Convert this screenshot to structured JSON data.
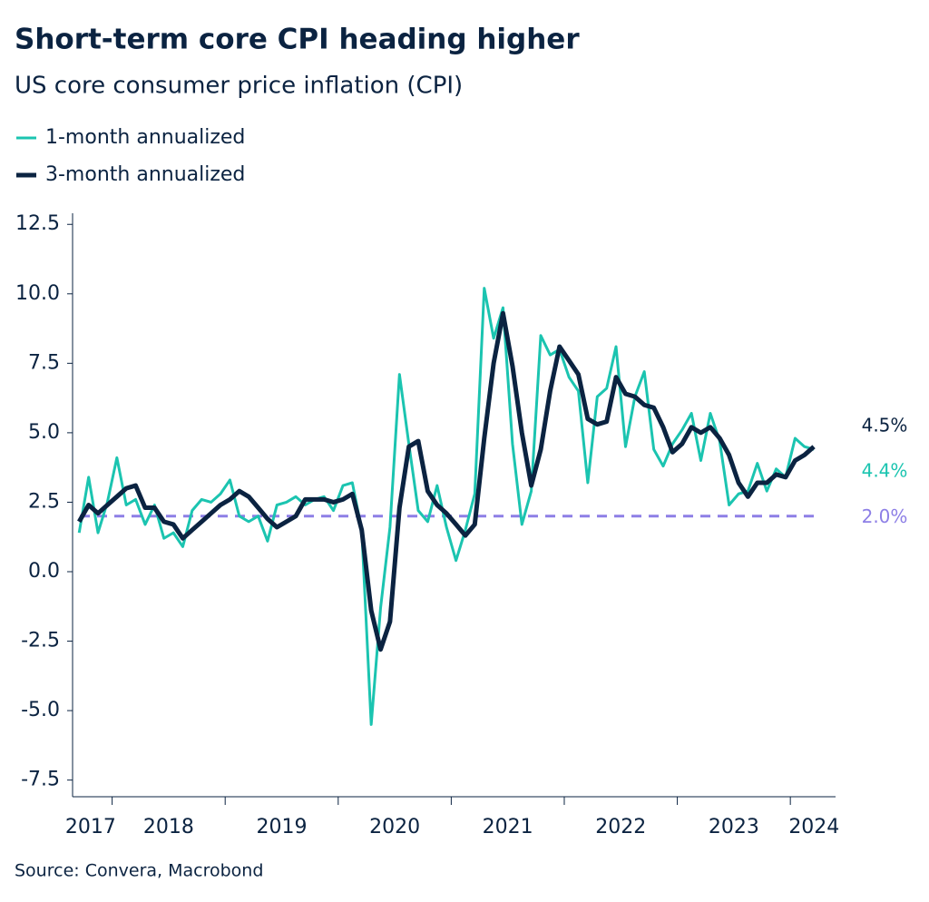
{
  "chart_data": {
    "type": "line",
    "title": "Short-term core CPI heading higher",
    "subtitle": "US core consumer price inflation (CPI)",
    "source": "Source: Convera, Macrobond",
    "x": [
      2017.708,
      2017.792,
      2017.875,
      2017.958,
      2018.042,
      2018.125,
      2018.208,
      2018.292,
      2018.375,
      2018.458,
      2018.542,
      2018.625,
      2018.708,
      2018.792,
      2018.875,
      2018.958,
      2019.042,
      2019.125,
      2019.208,
      2019.292,
      2019.375,
      2019.458,
      2019.542,
      2019.625,
      2019.708,
      2019.792,
      2019.875,
      2019.958,
      2020.042,
      2020.125,
      2020.208,
      2020.292,
      2020.375,
      2020.458,
      2020.542,
      2020.625,
      2020.708,
      2020.792,
      2020.875,
      2020.958,
      2021.042,
      2021.125,
      2021.208,
      2021.292,
      2021.375,
      2021.458,
      2021.542,
      2021.625,
      2021.708,
      2021.792,
      2021.875,
      2021.958,
      2022.042,
      2022.125,
      2022.208,
      2022.292,
      2022.375,
      2022.458,
      2022.542,
      2022.625,
      2022.708,
      2022.792,
      2022.875,
      2022.958,
      2023.042,
      2023.125,
      2023.208,
      2023.292,
      2023.375,
      2023.458,
      2023.542,
      2023.625,
      2023.708,
      2023.792,
      2023.875,
      2023.958,
      2024.042,
      2024.125,
      2024.208
    ],
    "series": [
      {
        "name": "1-month annualized",
        "color": "#1bc4b0",
        "width": 3,
        "end_label": "4.4%",
        "values": [
          1.4,
          3.4,
          1.4,
          2.5,
          4.1,
          2.4,
          2.6,
          1.7,
          2.4,
          1.2,
          1.4,
          0.9,
          2.2,
          2.6,
          2.5,
          2.8,
          3.3,
          2.0,
          1.8,
          2.0,
          1.1,
          2.4,
          2.5,
          2.7,
          2.4,
          2.6,
          2.7,
          2.2,
          3.1,
          3.2,
          1.5,
          -5.5,
          -1.3,
          1.6,
          7.1,
          4.6,
          2.2,
          1.8,
          3.1,
          1.6,
          0.4,
          1.5,
          2.8,
          10.2,
          8.4,
          9.5,
          4.6,
          1.7,
          2.9,
          8.5,
          7.8,
          8.0,
          7.0,
          6.5,
          3.2,
          6.3,
          6.6,
          8.1,
          4.5,
          6.3,
          7.2,
          4.4,
          3.8,
          4.6,
          5.1,
          5.7,
          4.0,
          5.7,
          4.7,
          2.4,
          2.8,
          2.9,
          3.9,
          2.9,
          3.7,
          3.4,
          4.8,
          4.5,
          4.4
        ]
      },
      {
        "name": "3-month annualized",
        "color": "#0b2341",
        "width": 5,
        "end_label": "4.5%",
        "values": [
          1.8,
          2.4,
          2.1,
          2.4,
          2.7,
          3.0,
          3.1,
          2.3,
          2.3,
          1.8,
          1.7,
          1.2,
          1.5,
          1.8,
          2.1,
          2.4,
          2.6,
          2.9,
          2.7,
          2.3,
          1.9,
          1.6,
          1.8,
          2.0,
          2.6,
          2.6,
          2.6,
          2.5,
          2.6,
          2.8,
          1.5,
          -1.4,
          -2.8,
          -1.8,
          2.3,
          4.5,
          4.7,
          2.9,
          2.4,
          2.1,
          1.7,
          1.3,
          1.7,
          4.8,
          7.5,
          9.3,
          7.4,
          5.0,
          3.1,
          4.4,
          6.5,
          8.1,
          7.6,
          7.1,
          5.5,
          5.3,
          5.4,
          7.0,
          6.4,
          6.3,
          6.0,
          5.9,
          5.2,
          4.3,
          4.6,
          5.2,
          5.0,
          5.2,
          4.8,
          4.2,
          3.2,
          2.7,
          3.2,
          3.2,
          3.5,
          3.4,
          4.0,
          4.2,
          4.5
        ]
      }
    ],
    "reference_line": {
      "value": 2.0,
      "label": "2.0%",
      "color": "#8d7fe6"
    },
    "xlim": [
      2017.65,
      2024.4
    ],
    "ylim": [
      -8.1,
      12.9
    ],
    "xticks": [
      2018,
      2019,
      2020,
      2021,
      2022,
      2023,
      2024
    ],
    "xtick_labels": [
      {
        "value": 2017.81,
        "label": "2017"
      },
      {
        "value": 2018.5,
        "label": "2018"
      },
      {
        "value": 2019.5,
        "label": "2019"
      },
      {
        "value": 2020.5,
        "label": "2020"
      },
      {
        "value": 2021.5,
        "label": "2021"
      },
      {
        "value": 2022.5,
        "label": "2022"
      },
      {
        "value": 2023.5,
        "label": "2023"
      },
      {
        "value": 2024.21,
        "label": "2024"
      }
    ],
    "yticks": [
      {
        "value": 12.5,
        "label": "12.5"
      },
      {
        "value": 10,
        "label": "10.0"
      },
      {
        "value": 7.5,
        "label": "7.5"
      },
      {
        "value": 5,
        "label": "5.0"
      },
      {
        "value": 2.5,
        "label": "2.5"
      },
      {
        "value": 0,
        "label": "0.0"
      },
      {
        "value": -2.5,
        "label": "-2.5"
      },
      {
        "value": -5,
        "label": "-5.0"
      },
      {
        "value": -7.5,
        "label": "-7.5"
      }
    ]
  }
}
